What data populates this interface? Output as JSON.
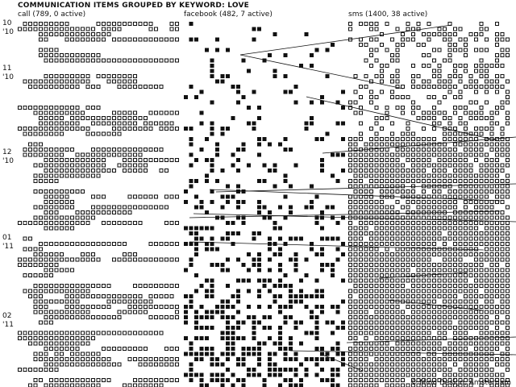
{
  "header": {
    "title": "COMMUNICATION ITEMS GROUPED BY KEYWORD: LOVE"
  },
  "columns": [
    {
      "id": "call",
      "label": "call (789, 0 active)",
      "total": 789,
      "active": 0,
      "style": "outline"
    },
    {
      "id": "facebook",
      "label": "facebook (482, 7 active)",
      "total": 482,
      "active": 7,
      "style": "filled"
    },
    {
      "id": "sms",
      "label": "sms (1400, 38 active)",
      "total": 1400,
      "active": 38,
      "style": "outline"
    }
  ],
  "months": [
    {
      "month": "10",
      "year": "'10"
    },
    {
      "month": "11",
      "year": "'10"
    },
    {
      "month": "12",
      "year": "'10"
    },
    {
      "month": "01",
      "year": "'11"
    },
    {
      "month": "02",
      "year": "'11"
    }
  ],
  "footer": {
    "credit": "© Mind Design, Amsterdam"
  },
  "colors": {
    "ink": "#111111",
    "background": "#ffffff"
  }
}
